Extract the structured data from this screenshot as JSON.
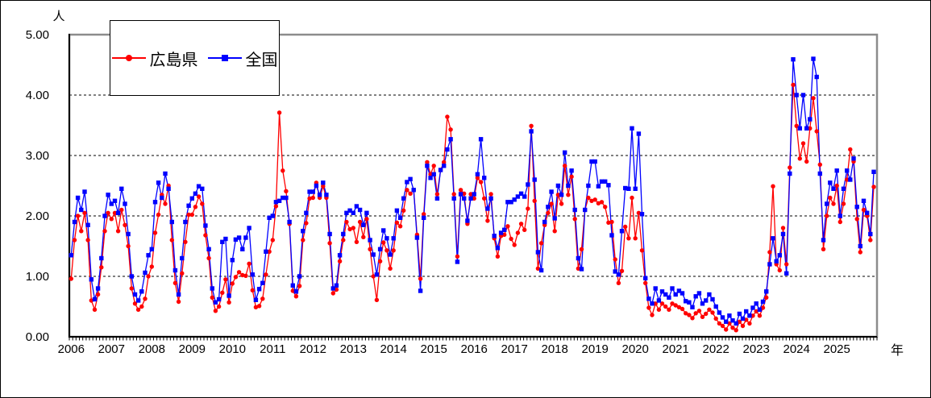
{
  "labels": {
    "y_unit": "人",
    "x_unit": "年"
  },
  "colors": {
    "hiroshima": "#ff0000",
    "national": "#0000ff",
    "grid": "#000000",
    "frame": "#8c8c8c",
    "axis": "#000000"
  },
  "chart_data": {
    "type": "line",
    "title": "",
    "xlabel": "年",
    "ylabel": "人",
    "ylim": [
      0,
      5
    ],
    "y_ticks": [
      "5.00",
      "4.00",
      "3.00",
      "2.00",
      "1.00",
      "0.00"
    ],
    "x_tick_years": [
      "2006",
      "2007",
      "2008",
      "2009",
      "2010",
      "2011",
      "2012",
      "2013",
      "2014",
      "2015",
      "2016",
      "2017",
      "2018",
      "2019",
      "2020",
      "2021",
      "2022",
      "2023",
      "2024",
      "2025"
    ],
    "x_interval": "monthly",
    "x_start": "2006-01",
    "x_end": "2025-12",
    "grid": "horizontal-dashed",
    "legend_position": "top-left-inside",
    "series": [
      {
        "name": "広島県",
        "color": "#ff0000",
        "marker": "circle",
        "values": [
          0.96,
          1.6,
          2.0,
          1.75,
          2.05,
          1.6,
          0.6,
          0.45,
          0.7,
          1.15,
          1.75,
          2.05,
          1.95,
          2.05,
          1.75,
          2.1,
          1.85,
          1.5,
          0.8,
          0.55,
          0.45,
          0.5,
          0.63,
          1.0,
          1.16,
          1.72,
          2.02,
          2.35,
          2.2,
          2.5,
          1.6,
          0.89,
          0.58,
          1.05,
          1.57,
          2.02,
          2.02,
          2.15,
          2.32,
          2.2,
          1.68,
          1.3,
          0.65,
          0.43,
          0.5,
          0.73,
          0.95,
          0.57,
          0.88,
          0.99,
          1.07,
          1.02,
          1.01,
          1.21,
          0.77,
          0.49,
          0.51,
          0.63,
          1.03,
          1.41,
          1.6,
          2.16,
          3.71,
          2.75,
          2.41,
          1.87,
          0.76,
          0.67,
          0.84,
          1.6,
          1.88,
          2.29,
          2.3,
          2.55,
          2.3,
          2.49,
          2.3,
          1.55,
          0.72,
          0.78,
          1.25,
          1.6,
          1.9,
          1.78,
          1.8,
          1.57,
          1.9,
          1.65,
          1.95,
          1.45,
          1.0,
          0.61,
          1.25,
          1.56,
          1.43,
          1.13,
          1.43,
          1.89,
          1.83,
          2.09,
          2.43,
          2.37,
          2.43,
          1.69,
          0.96,
          2.03,
          2.89,
          2.69,
          2.83,
          2.36,
          2.76,
          2.89,
          3.64,
          3.43,
          2.36,
          1.33,
          2.43,
          2.37,
          1.87,
          2.36,
          2.29,
          2.63,
          2.56,
          2.29,
          1.92,
          2.36,
          1.63,
          1.33,
          1.67,
          1.69,
          1.83,
          1.62,
          1.52,
          1.72,
          1.87,
          1.77,
          2.12,
          3.49,
          2.25,
          1.13,
          1.55,
          1.85,
          2.05,
          2.2,
          1.75,
          2.35,
          2.2,
          2.83,
          2.35,
          2.65,
          1.95,
          1.13,
          1.45,
          2.1,
          2.3,
          2.25,
          2.27,
          2.21,
          2.23,
          2.15,
          1.89,
          1.9,
          1.28,
          0.89,
          1.09,
          1.82,
          1.63,
          2.3,
          1.63,
          2.05,
          1.43,
          0.89,
          0.48,
          0.36,
          0.55,
          0.45,
          0.55,
          0.5,
          0.45,
          0.55,
          0.52,
          0.49,
          0.46,
          0.39,
          0.36,
          0.31,
          0.39,
          0.43,
          0.33,
          0.38,
          0.45,
          0.4,
          0.3,
          0.22,
          0.18,
          0.12,
          0.22,
          0.15,
          0.11,
          0.25,
          0.18,
          0.28,
          0.22,
          0.35,
          0.42,
          0.35,
          0.48,
          0.65,
          1.4,
          2.49,
          1.2,
          1.1,
          1.8,
          1.2,
          2.8,
          4.17,
          3.49,
          2.95,
          3.2,
          2.9,
          3.45,
          3.95,
          3.4,
          2.85,
          1.45,
          2.0,
          2.3,
          2.2,
          2.5,
          1.9,
          2.2,
          2.6,
          3.1,
          2.9,
          1.95,
          1.4,
          2.1,
          2.0,
          1.6,
          2.48
        ]
      },
      {
        "name": "全国",
        "color": "#0000ff",
        "marker": "square",
        "values": [
          1.35,
          1.9,
          2.3,
          2.1,
          2.4,
          1.85,
          0.95,
          0.62,
          0.8,
          1.3,
          2.0,
          2.35,
          2.2,
          2.25,
          2.05,
          2.45,
          2.2,
          1.7,
          1.0,
          0.7,
          0.6,
          0.75,
          1.06,
          1.35,
          1.45,
          2.23,
          2.55,
          2.3,
          2.7,
          2.45,
          1.9,
          1.1,
          0.7,
          1.3,
          1.9,
          2.17,
          2.29,
          2.37,
          2.49,
          2.45,
          1.84,
          1.45,
          0.8,
          0.57,
          0.62,
          1.57,
          1.62,
          0.68,
          1.27,
          1.61,
          1.64,
          1.45,
          1.64,
          1.8,
          1.03,
          0.61,
          0.79,
          0.89,
          1.41,
          1.97,
          2.0,
          2.23,
          2.25,
          2.3,
          2.3,
          1.9,
          0.85,
          0.75,
          1.0,
          1.75,
          2.05,
          2.4,
          2.4,
          2.5,
          2.35,
          2.55,
          2.35,
          1.7,
          0.8,
          0.85,
          1.35,
          1.7,
          2.05,
          2.09,
          2.05,
          2.16,
          2.1,
          1.85,
          2.05,
          1.6,
          1.36,
          1.03,
          1.45,
          1.76,
          1.63,
          1.36,
          1.63,
          2.09,
          1.97,
          2.29,
          2.56,
          2.61,
          2.43,
          1.64,
          0.76,
          1.97,
          2.83,
          2.63,
          2.69,
          2.29,
          2.76,
          2.83,
          3.1,
          3.27,
          2.29,
          1.24,
          2.36,
          2.29,
          1.92,
          2.29,
          2.36,
          2.69,
          3.27,
          2.63,
          2.12,
          2.29,
          1.67,
          1.47,
          1.72,
          1.77,
          2.23,
          2.23,
          2.27,
          2.32,
          2.37,
          2.32,
          2.52,
          3.4,
          2.6,
          1.4,
          1.1,
          1.9,
          2.15,
          2.4,
          1.96,
          2.5,
          2.35,
          3.05,
          2.5,
          2.75,
          2.1,
          1.3,
          1.12,
          2.1,
          2.5,
          2.9,
          2.9,
          2.49,
          2.57,
          2.57,
          2.51,
          1.68,
          1.08,
          1.03,
          1.75,
          2.46,
          2.45,
          3.45,
          2.45,
          3.36,
          2.03,
          0.97,
          0.63,
          0.55,
          0.8,
          0.6,
          0.75,
          0.7,
          0.65,
          0.8,
          0.7,
          0.76,
          0.72,
          0.59,
          0.57,
          0.49,
          0.67,
          0.72,
          0.55,
          0.6,
          0.7,
          0.62,
          0.5,
          0.4,
          0.32,
          0.25,
          0.35,
          0.27,
          0.22,
          0.38,
          0.3,
          0.42,
          0.35,
          0.48,
          0.55,
          0.45,
          0.58,
          0.75,
          1.2,
          1.63,
          1.25,
          1.35,
          1.7,
          1.05,
          2.7,
          4.59,
          4.0,
          3.45,
          4.0,
          3.45,
          3.6,
          4.6,
          4.3,
          2.7,
          1.6,
          2.2,
          2.55,
          2.45,
          2.75,
          2.0,
          2.45,
          2.75,
          2.6,
          2.95,
          2.15,
          1.5,
          2.25,
          2.05,
          1.7,
          2.73
        ]
      }
    ]
  }
}
